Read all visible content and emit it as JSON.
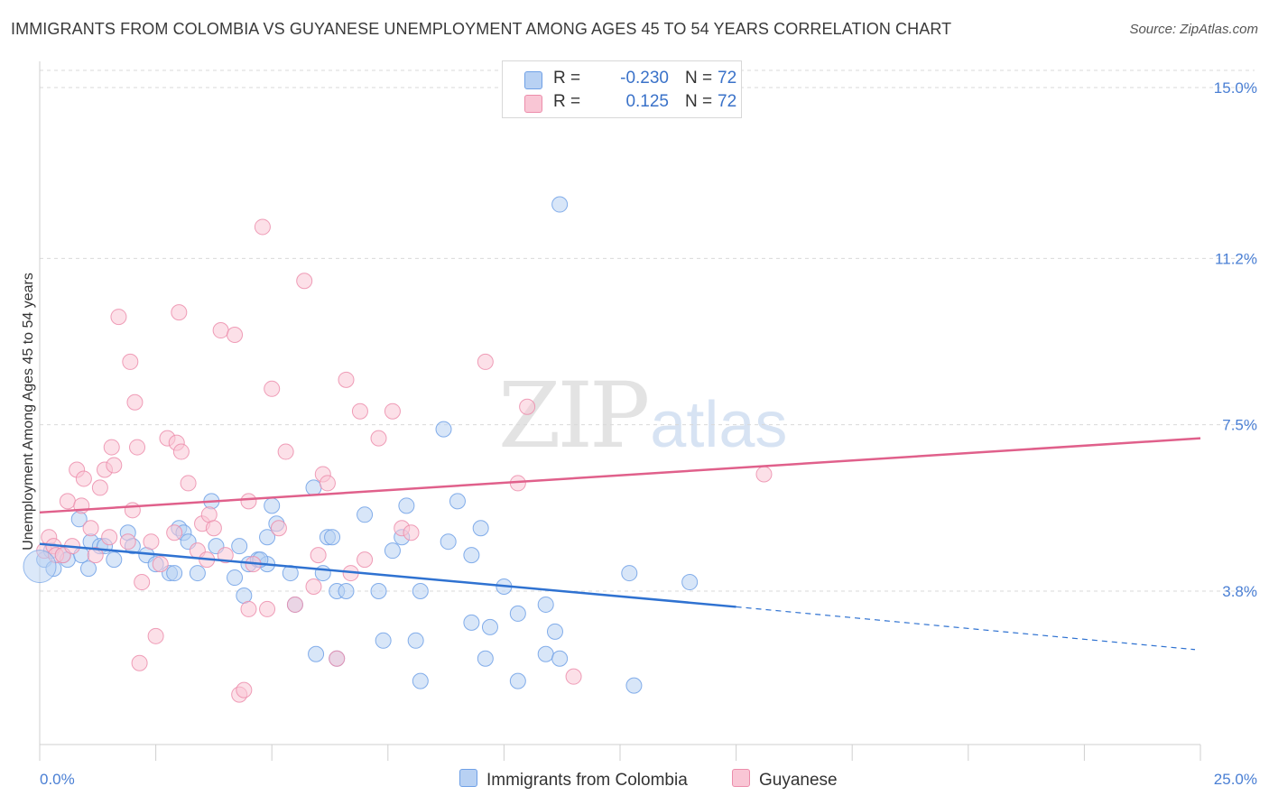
{
  "title": "IMMIGRANTS FROM COLOMBIA VS GUYANESE UNEMPLOYMENT AMONG AGES 45 TO 54 YEARS CORRELATION CHART",
  "source": "Source: ZipAtlas.com",
  "watermark": {
    "zip": "ZIP",
    "atlas": "atlas"
  },
  "legend": {
    "colombia": {
      "r_label": "R =",
      "r_value": "-0.230",
      "n_label": "N =",
      "n_value": "72",
      "color": "#b8d1f3"
    },
    "guyanese": {
      "r_label": "R =",
      "r_value": "0.125",
      "n_label": "N =",
      "n_value": "72",
      "color": "#f9c6d5"
    }
  },
  "bottom_legend": {
    "colombia": "Immigrants from Colombia",
    "guyanese": "Guyanese"
  },
  "chart_data": {
    "type": "scatter",
    "title": "IMMIGRANTS FROM COLOMBIA VS GUYANESE UNEMPLOYMENT AMONG AGES 45 TO 54 YEARS CORRELATION CHART",
    "xlabel": "",
    "ylabel": "Unemployment Among Ages 45 to 54 years",
    "xlim": [
      0,
      25
    ],
    "ylim": [
      0,
      15.4
    ],
    "x_tick_labels": [
      {
        "value": 0,
        "label": "0.0%"
      },
      {
        "value": 25,
        "label": "25.0%"
      }
    ],
    "y_tick_labels": [
      {
        "value": 15.0,
        "label": "15.0%"
      },
      {
        "value": 11.2,
        "label": "11.2%"
      },
      {
        "value": 7.5,
        "label": "7.5%"
      },
      {
        "value": 3.8,
        "label": "3.8%"
      }
    ],
    "series": [
      {
        "name": "Immigrants from Colombia",
        "color": "#6fa0e6",
        "fill": "#b8d1f3",
        "line_color": "#2f72d1",
        "trend": {
          "x0": 0,
          "y0": 4.85,
          "x1": 15.0,
          "y1": 3.45,
          "dash_to_x": 25,
          "dash_to_y": 2.5
        },
        "points": [
          [
            0.1,
            4.5
          ],
          [
            0.25,
            4.7
          ],
          [
            0.3,
            4.3
          ],
          [
            0.5,
            4.6
          ],
          [
            0.6,
            4.5
          ],
          [
            0.85,
            5.4
          ],
          [
            0.9,
            4.6
          ],
          [
            1.05,
            4.3
          ],
          [
            1.1,
            4.9
          ],
          [
            1.3,
            4.8
          ],
          [
            1.4,
            4.8
          ],
          [
            1.6,
            4.5
          ],
          [
            1.9,
            5.1
          ],
          [
            2.0,
            4.8
          ],
          [
            2.3,
            4.6
          ],
          [
            2.5,
            4.4
          ],
          [
            2.8,
            4.2
          ],
          [
            2.9,
            4.2
          ],
          [
            3.0,
            5.2
          ],
          [
            3.1,
            5.1
          ],
          [
            3.2,
            4.9
          ],
          [
            3.4,
            4.2
          ],
          [
            3.7,
            5.8
          ],
          [
            3.8,
            4.8
          ],
          [
            4.2,
            4.1
          ],
          [
            4.4,
            3.7
          ],
          [
            4.3,
            4.8
          ],
          [
            4.5,
            4.4
          ],
          [
            4.7,
            4.5
          ],
          [
            4.9,
            4.4
          ],
          [
            4.75,
            4.5
          ],
          [
            4.9,
            5.0
          ],
          [
            5.0,
            5.7
          ],
          [
            5.1,
            5.3
          ],
          [
            5.4,
            4.2
          ],
          [
            5.5,
            3.5
          ],
          [
            5.9,
            6.1
          ],
          [
            5.95,
            2.4
          ],
          [
            6.1,
            4.2
          ],
          [
            6.2,
            5.0
          ],
          [
            6.3,
            5.0
          ],
          [
            6.4,
            2.3
          ],
          [
            6.4,
            3.8
          ],
          [
            6.6,
            3.8
          ],
          [
            7.0,
            5.5
          ],
          [
            7.3,
            3.8
          ],
          [
            7.4,
            2.7
          ],
          [
            7.6,
            4.7
          ],
          [
            7.8,
            5.0
          ],
          [
            7.9,
            5.7
          ],
          [
            8.1,
            2.7
          ],
          [
            8.2,
            3.8
          ],
          [
            8.2,
            1.8
          ],
          [
            8.7,
            7.4
          ],
          [
            8.8,
            4.9
          ],
          [
            9.0,
            5.8
          ],
          [
            9.3,
            3.1
          ],
          [
            9.3,
            4.6
          ],
          [
            9.5,
            5.2
          ],
          [
            9.6,
            2.3
          ],
          [
            9.7,
            3.0
          ],
          [
            10.0,
            3.9
          ],
          [
            10.3,
            3.3
          ],
          [
            10.3,
            1.8
          ],
          [
            10.9,
            2.4
          ],
          [
            10.9,
            3.5
          ],
          [
            11.1,
            2.9
          ],
          [
            11.2,
            2.3
          ],
          [
            11.2,
            12.4
          ],
          [
            12.7,
            4.2
          ],
          [
            12.8,
            1.7
          ],
          [
            14.0,
            4.0
          ]
        ]
      },
      {
        "name": "Guyanese",
        "color": "#ec8dab",
        "fill": "#f9c6d5",
        "line_color": "#e0608b",
        "trend": {
          "x0": 0,
          "y0": 5.55,
          "x1": 25,
          "y1": 7.2
        },
        "points": [
          [
            0.1,
            4.7
          ],
          [
            0.2,
            5.0
          ],
          [
            0.3,
            4.8
          ],
          [
            0.35,
            4.6
          ],
          [
            0.5,
            4.6
          ],
          [
            0.6,
            5.8
          ],
          [
            0.7,
            4.8
          ],
          [
            0.8,
            6.5
          ],
          [
            0.9,
            5.7
          ],
          [
            0.95,
            6.3
          ],
          [
            1.1,
            5.2
          ],
          [
            1.2,
            4.6
          ],
          [
            1.3,
            6.1
          ],
          [
            1.4,
            6.5
          ],
          [
            1.5,
            5.0
          ],
          [
            1.55,
            7.0
          ],
          [
            1.6,
            6.6
          ],
          [
            1.7,
            9.9
          ],
          [
            1.9,
            4.9
          ],
          [
            1.95,
            8.9
          ],
          [
            2.0,
            5.6
          ],
          [
            2.05,
            8.0
          ],
          [
            2.1,
            7.0
          ],
          [
            2.15,
            2.2
          ],
          [
            2.2,
            4.0
          ],
          [
            2.4,
            4.9
          ],
          [
            2.5,
            2.8
          ],
          [
            2.6,
            4.4
          ],
          [
            2.75,
            7.2
          ],
          [
            2.9,
            5.1
          ],
          [
            2.95,
            7.1
          ],
          [
            3.0,
            10.0
          ],
          [
            3.05,
            6.9
          ],
          [
            3.2,
            6.2
          ],
          [
            3.4,
            4.7
          ],
          [
            3.5,
            5.3
          ],
          [
            3.6,
            4.5
          ],
          [
            3.65,
            5.5
          ],
          [
            3.75,
            5.2
          ],
          [
            3.9,
            9.6
          ],
          [
            4.0,
            4.6
          ],
          [
            4.2,
            9.5
          ],
          [
            4.3,
            1.5
          ],
          [
            4.4,
            1.6
          ],
          [
            4.5,
            5.8
          ],
          [
            4.5,
            3.4
          ],
          [
            4.6,
            4.4
          ],
          [
            4.8,
            11.9
          ],
          [
            4.9,
            3.4
          ],
          [
            5.0,
            8.3
          ],
          [
            5.15,
            5.2
          ],
          [
            5.3,
            6.9
          ],
          [
            5.5,
            3.5
          ],
          [
            5.7,
            10.7
          ],
          [
            5.9,
            3.9
          ],
          [
            6.0,
            4.6
          ],
          [
            6.1,
            6.4
          ],
          [
            6.2,
            6.2
          ],
          [
            6.4,
            2.3
          ],
          [
            6.6,
            8.5
          ],
          [
            6.7,
            4.2
          ],
          [
            6.9,
            7.8
          ],
          [
            7.0,
            4.5
          ],
          [
            7.3,
            7.2
          ],
          [
            7.6,
            7.8
          ],
          [
            7.8,
            5.2
          ],
          [
            8.0,
            5.1
          ],
          [
            9.6,
            8.9
          ],
          [
            10.3,
            6.2
          ],
          [
            10.5,
            7.9
          ],
          [
            11.5,
            1.9
          ],
          [
            15.6,
            6.4
          ]
        ]
      }
    ],
    "grid": true
  }
}
